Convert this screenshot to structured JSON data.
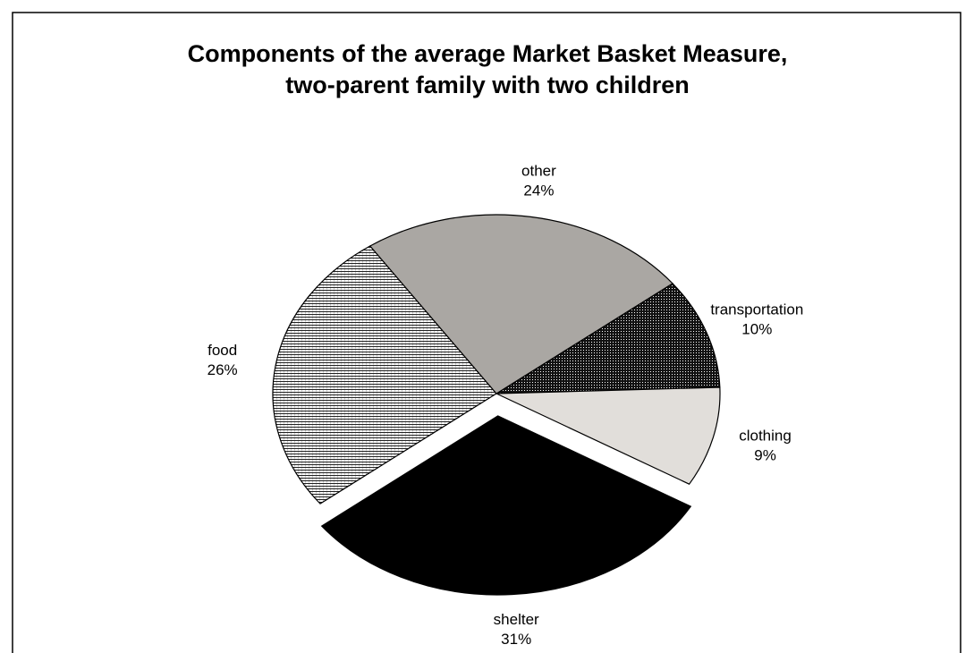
{
  "chart_data": {
    "type": "pie",
    "title": "Components of the average Market Basket Measure,",
    "subtitle": "two-parent family with two children",
    "categories": [
      "transportation",
      "clothing",
      "shelter",
      "food",
      "other"
    ],
    "values": [
      10,
      9,
      31,
      26,
      24
    ],
    "value_labels": [
      "10%",
      "9%",
      "31%",
      "26%",
      "24%"
    ],
    "colors": [
      "#000000",
      "#e1deda",
      "#000000",
      "#ffffff",
      "#aaa7a3"
    ],
    "patterns": [
      "dots",
      null,
      null,
      "hlines",
      null
    ],
    "explode": [
      0,
      0,
      1,
      0,
      0
    ]
  }
}
